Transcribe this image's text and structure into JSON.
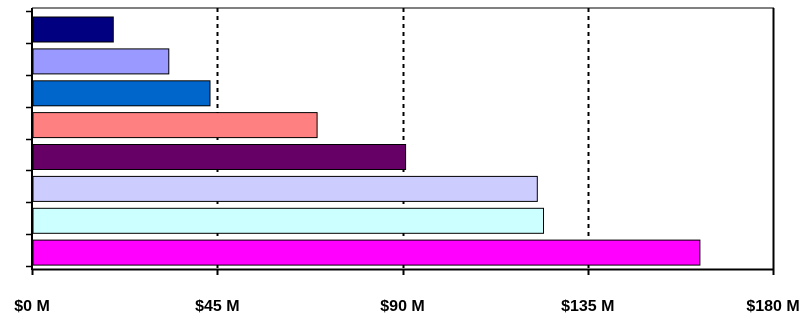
{
  "chart_data": {
    "type": "bar",
    "orientation": "horizontal",
    "title": "",
    "xlabel": "",
    "ylabel": "",
    "xlim": [
      0,
      180
    ],
    "x_ticks": [
      0,
      45,
      90,
      135,
      180
    ],
    "x_tick_labels": [
      "$0 M",
      "$45 M",
      "$90 M",
      "$135 M",
      "$180 M"
    ],
    "grid": "vertical dashed at 45, 90, 135",
    "legend": "none",
    "bars": [
      {
        "value": 19.5,
        "color": "#000080"
      },
      {
        "value": 33,
        "color": "#9999ff"
      },
      {
        "value": 43,
        "color": "#0066cc"
      },
      {
        "value": 69,
        "color": "#ff8080"
      },
      {
        "value": 90.5,
        "color": "#660066"
      },
      {
        "value": 122.5,
        "color": "#ccccff"
      },
      {
        "value": 124,
        "color": "#ccffff"
      },
      {
        "value": 162,
        "color": "#ff00ff"
      }
    ]
  }
}
